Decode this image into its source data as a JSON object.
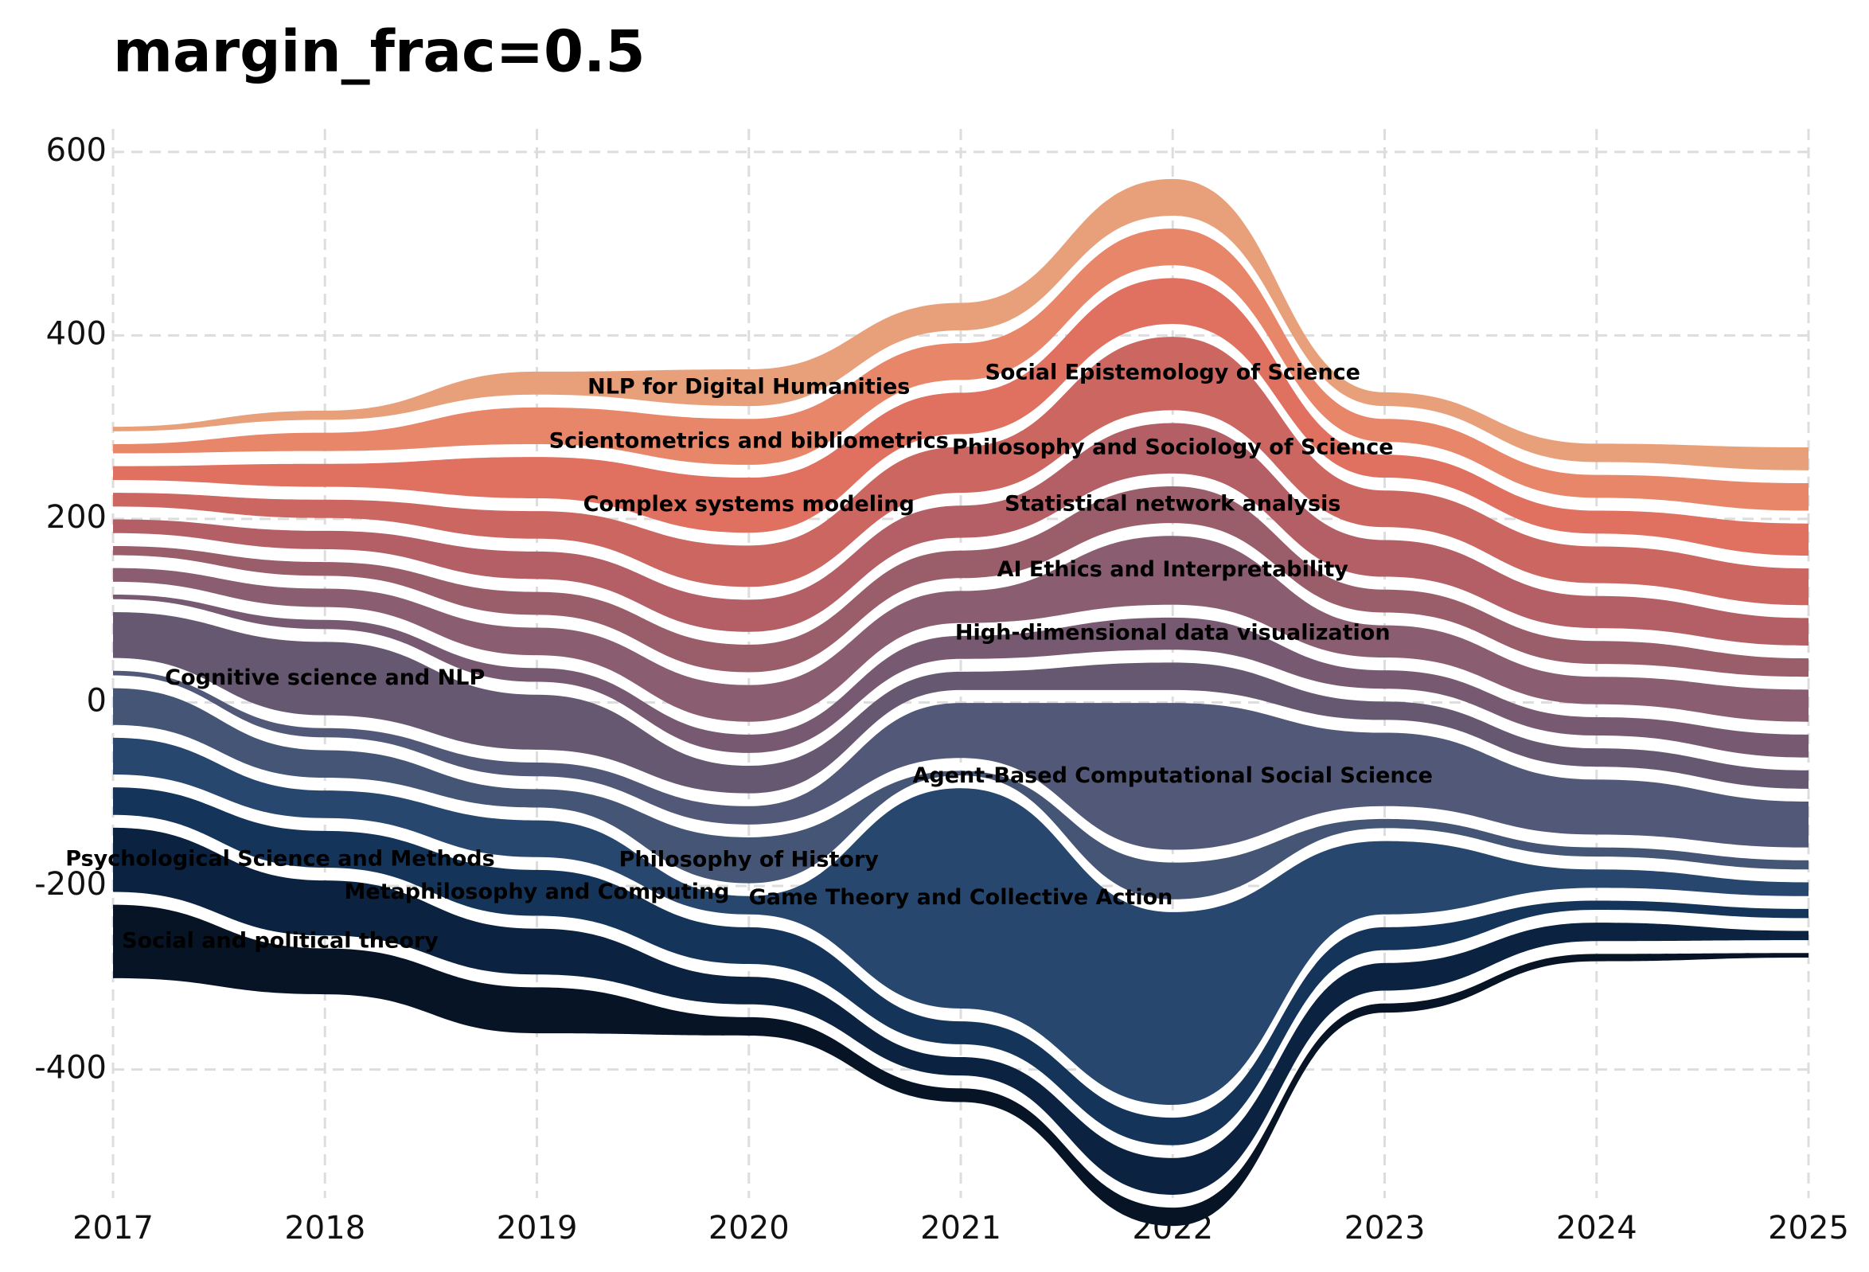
{
  "chart_data": {
    "type": "streamgraph",
    "title": "margin_frac=0.5",
    "x": [
      2017,
      2018,
      2019,
      2020,
      2021,
      2022,
      2023,
      2024,
      2025
    ],
    "xlim": [
      2017,
      2025
    ],
    "xticks": [
      2017,
      2018,
      2019,
      2020,
      2021,
      2022,
      2023,
      2024,
      2025
    ],
    "ylim": [
      -540,
      625
    ],
    "yticks": [
      -400,
      -200,
      0,
      200,
      400,
      600
    ],
    "grid": true,
    "series": [
      {
        "name": "NLP for Digital Humanities",
        "color": "#e8a07a",
        "values": [
          5,
          10,
          25,
          40,
          30,
          40,
          15,
          20,
          25
        ]
      },
      {
        "name": "Scientometrics and bibliometrics",
        "color": "#e8866a",
        "values": [
          10,
          20,
          40,
          50,
          40,
          40,
          25,
          25,
          30
        ]
      },
      {
        "name": "Complex systems modeling",
        "color": "#e07060",
        "values": [
          15,
          25,
          45,
          60,
          45,
          50,
          25,
          25,
          35
        ]
      },
      {
        "name": "Social Epistemology of Science",
        "color": "#cc6660",
        "values": [
          15,
          20,
          30,
          45,
          50,
          80,
          40,
          40,
          40
        ]
      },
      {
        "name": "Philosophy and Sociology of Science",
        "color": "#b35f65",
        "values": [
          15,
          20,
          30,
          35,
          35,
          55,
          40,
          35,
          30
        ]
      },
      {
        "name": "Statistical network analysis",
        "color": "#9a5d6a",
        "values": [
          10,
          15,
          25,
          30,
          30,
          40,
          25,
          25,
          20
        ]
      },
      {
        "name": "AI Ethics and Interpretability",
        "color": "#8a5e70",
        "values": [
          15,
          20,
          30,
          40,
          35,
          75,
          35,
          30,
          35
        ]
      },
      {
        "name": "High-dimensional data visualization",
        "color": "#775a72",
        "values": [
          5,
          10,
          15,
          20,
          25,
          35,
          20,
          20,
          25
        ]
      },
      {
        "name": "Cognitive science and NLP",
        "color": "#675872",
        "values": [
          50,
          80,
          60,
          30,
          20,
          30,
          20,
          20,
          20
        ]
      },
      {
        "name": "Agent-Based Computational Social Science",
        "color": "#525878",
        "values": [
          5,
          10,
          15,
          20,
          60,
          160,
          80,
          60,
          50
        ]
      },
      {
        "name": "Philosophy of History",
        "color": "#445575",
        "values": [
          40,
          30,
          20,
          50,
          5,
          40,
          10,
          10,
          10
        ]
      },
      {
        "name": "Game Theory and Collective Action",
        "color": "#27476e",
        "values": [
          40,
          30,
          40,
          20,
          240,
          210,
          80,
          20,
          15
        ]
      },
      {
        "name": "Metaphilosophy and Computing",
        "color": "#15345a",
        "values": [
          30,
          40,
          50,
          40,
          25,
          30,
          25,
          10,
          10
        ]
      },
      {
        "name": "Psychological Science and Methods",
        "color": "#0b2240",
        "values": [
          70,
          60,
          50,
          30,
          20,
          40,
          30,
          20,
          10
        ]
      },
      {
        "name": "Social and political theory",
        "color": "#061426",
        "values": [
          80,
          50,
          50,
          20,
          15,
          20,
          10,
          8,
          5
        ]
      }
    ]
  }
}
